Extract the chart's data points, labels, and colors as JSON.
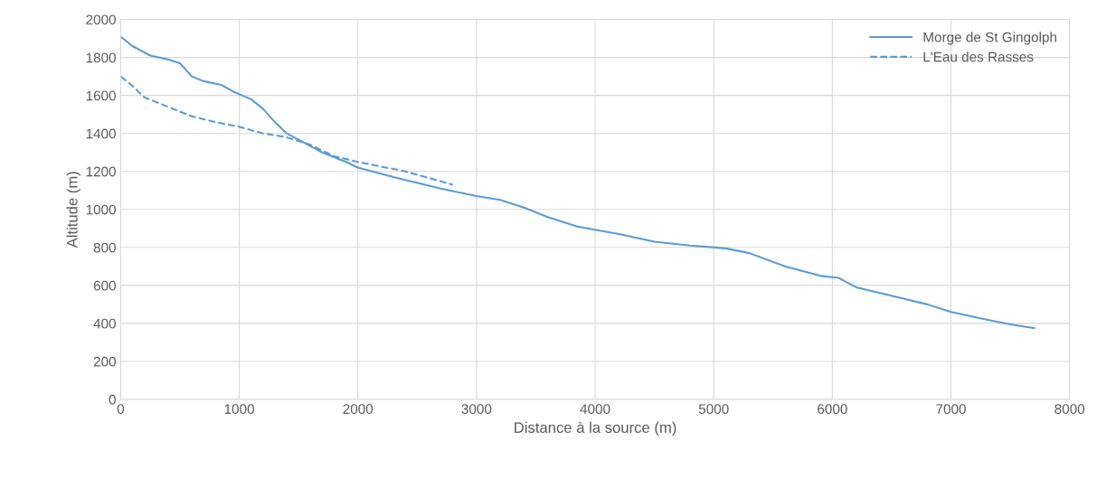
{
  "chart_data": {
    "type": "line",
    "xlabel": "Distance à la source (m)",
    "ylabel": "Altitude (m)",
    "xlim": [
      0,
      8000
    ],
    "xticks": [
      0,
      1000,
      2000,
      3000,
      4000,
      5000,
      6000,
      7000,
      8000
    ],
    "ylim": [
      0,
      2000
    ],
    "yticks": [
      0,
      200,
      400,
      600,
      800,
      1000,
      1200,
      1400,
      1600,
      1800,
      2000
    ],
    "grid": true,
    "legend": "top right",
    "marker": "none",
    "series": [
      {
        "name": "Morge de St Gingolph",
        "color": "#5b9bd5",
        "line_style": "solid",
        "x": [
          0,
          100,
          250,
          400,
          500,
          600,
          700,
          850,
          950,
          1100,
          1200,
          1300,
          1400,
          1550,
          1700,
          1900,
          2000,
          2300,
          2700,
          3000,
          3200,
          3400,
          3600,
          3850,
          4200,
          4500,
          4800,
          5100,
          5300,
          5600,
          5900,
          6050,
          6200,
          6400,
          6600,
          6800,
          7000,
          7300,
          7500,
          7700
        ],
        "values": [
          1910,
          1860,
          1810,
          1790,
          1770,
          1700,
          1675,
          1655,
          1620,
          1580,
          1530,
          1460,
          1400,
          1350,
          1300,
          1250,
          1220,
          1170,
          1110,
          1070,
          1050,
          1010,
          960,
          910,
          870,
          830,
          810,
          795,
          770,
          700,
          650,
          640,
          590,
          560,
          530,
          500,
          460,
          420,
          395,
          375
        ]
      },
      {
        "name": "L'Eau des Rasses",
        "color": "#5b9bd5",
        "line_style": "dashed",
        "x": [
          0,
          100,
          200,
          400,
          600,
          800,
          1000,
          1200,
          1400,
          1600,
          1800,
          2000,
          2400,
          2800
        ],
        "values": [
          1700,
          1650,
          1590,
          1540,
          1490,
          1460,
          1435,
          1400,
          1380,
          1340,
          1280,
          1250,
          1200,
          1130
        ]
      }
    ]
  }
}
